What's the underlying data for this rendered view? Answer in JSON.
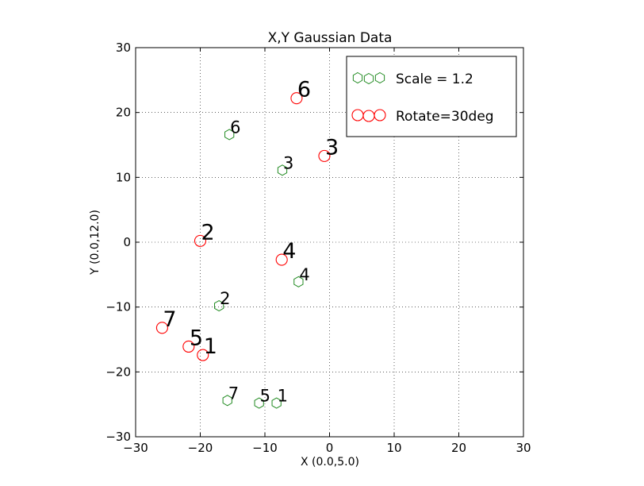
{
  "chart_data": {
    "type": "scatter",
    "title": "X,Y Gaussian Data",
    "xlabel": "X (0.0,5.0)",
    "ylabel": "Y (0.0,12.0)",
    "xlim": [
      -30,
      30
    ],
    "ylim": [
      -30,
      30
    ],
    "xticks": [
      -30,
      -20,
      -10,
      0,
      10,
      20,
      30
    ],
    "yticks": [
      -30,
      -20,
      -10,
      0,
      10,
      20,
      30
    ],
    "grid": true,
    "legend_position": "top-right",
    "series": [
      {
        "name": "Scale = 1.2",
        "marker": "hexagon",
        "color": "#228b22",
        "label_size": "small",
        "points": [
          {
            "label": "1",
            "x": -8.2,
            "y": -24.8
          },
          {
            "label": "2",
            "x": -17.1,
            "y": -9.8
          },
          {
            "label": "3",
            "x": -7.3,
            "y": 11.1
          },
          {
            "label": "4",
            "x": -4.8,
            "y": -6.1
          },
          {
            "label": "5",
            "x": -10.9,
            "y": -24.8
          },
          {
            "label": "6",
            "x": -15.5,
            "y": 16.6
          },
          {
            "label": "7",
            "x": -15.8,
            "y": -24.4
          }
        ]
      },
      {
        "name": "Rotate=30deg",
        "marker": "circle",
        "color": "#ff0000",
        "label_size": "large",
        "points": [
          {
            "label": "1",
            "x": -19.6,
            "y": -17.4
          },
          {
            "label": "2",
            "x": -20.0,
            "y": 0.2
          },
          {
            "label": "3",
            "x": -0.8,
            "y": 13.3
          },
          {
            "label": "4",
            "x": -7.4,
            "y": -2.7
          },
          {
            "label": "5",
            "x": -21.8,
            "y": -16.1
          },
          {
            "label": "6",
            "x": -5.1,
            "y": 22.2
          },
          {
            "label": "7",
            "x": -25.9,
            "y": -13.2
          }
        ]
      }
    ]
  }
}
